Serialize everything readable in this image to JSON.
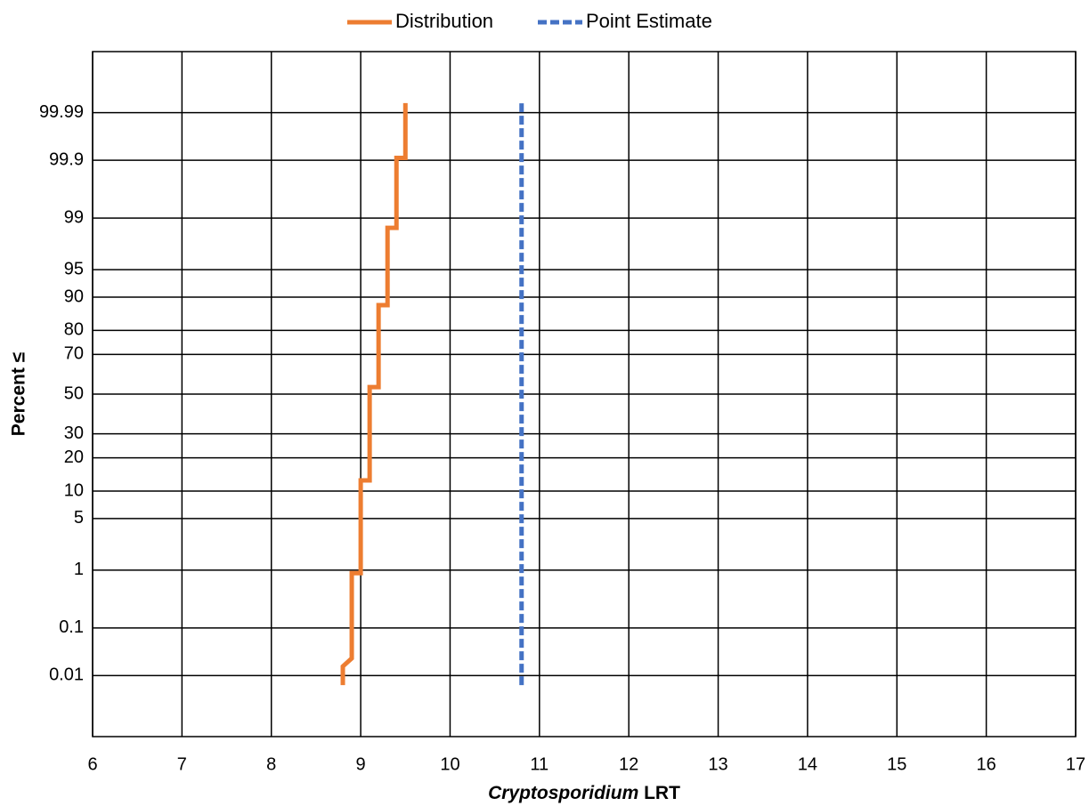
{
  "chart_data": {
    "type": "line",
    "scale": "probability",
    "grid": true,
    "xlabel": [
      "Cryptosporidium",
      "LRT"
    ],
    "ylabel": "Percent ≤",
    "xlim": [
      6,
      17
    ],
    "xticks": [
      6,
      7,
      8,
      9,
      10,
      11,
      12,
      13,
      14,
      15,
      16,
      17
    ],
    "ylim": [
      0.0003,
      99.9997
    ],
    "yticks": [
      0.01,
      0.1,
      1,
      5,
      10,
      20,
      30,
      50,
      70,
      80,
      90,
      95,
      99,
      99.9,
      99.99
    ],
    "series": [
      {
        "name": "Distribution",
        "color": "#ed7d31",
        "dash": false,
        "x": [
          8.8,
          8.8,
          8.9,
          8.9,
          9.0,
          9.0,
          9.1,
          9.1,
          9.2,
          9.2,
          9.3,
          9.3,
          9.4,
          9.4,
          9.5,
          9.5
        ],
        "values": [
          0.006,
          0.016,
          0.024,
          0.9,
          0.9,
          12.7,
          12.7,
          53.7,
          53.7,
          88,
          88,
          98.6,
          98.6,
          99.91,
          99.91,
          99.994
        ]
      },
      {
        "name": "Point Estimate",
        "color": "#4472c4",
        "dash": true,
        "x": [
          10.8,
          10.8
        ],
        "values": [
          0.006,
          99.994
        ]
      }
    ]
  }
}
